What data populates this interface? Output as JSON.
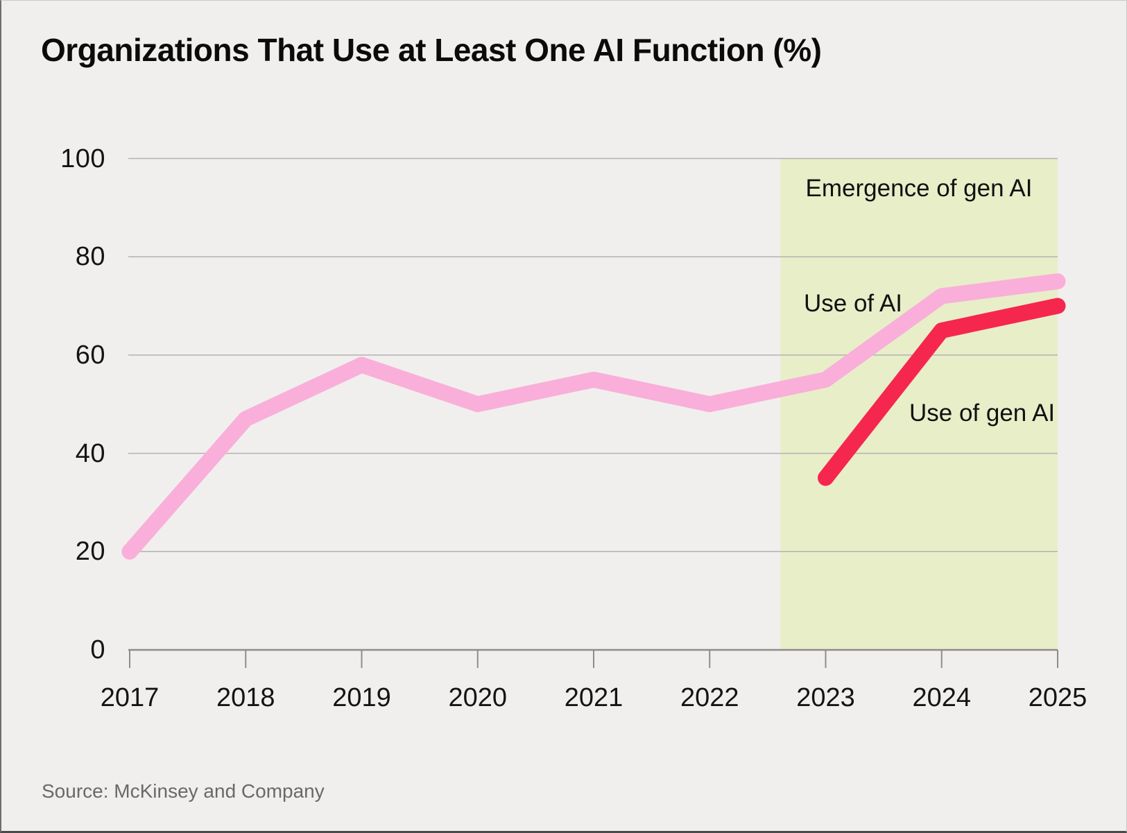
{
  "title": "Organizations That Use at Least One AI Function (%)",
  "source_note": "Source: McKinsey and Company",
  "annotations": {
    "emergence_label": "Emergence of gen AI",
    "use_ai_label": "Use of AI",
    "use_gen_ai_label": "Use of gen AI"
  },
  "colors": {
    "background": "#f0efed",
    "use_ai_line": "#f9afd9",
    "use_gen_ai_line": "#f5274e",
    "shaded_band": "#e8eec8",
    "gridline": "#b3b2b0",
    "axis": "#8d8c8a",
    "title_text": "#0b0b0b",
    "source_text": "#696969"
  },
  "chart_data": {
    "type": "line",
    "title": "Organizations That Use at Least One AI Function (%)",
    "xlabel": "",
    "ylabel": "",
    "x_tick_labels": [
      "2017",
      "2018",
      "2019",
      "2020",
      "2021",
      "2022",
      "2023",
      "2024",
      "2025"
    ],
    "xlim": [
      2017,
      2025
    ],
    "ylim": [
      0,
      100
    ],
    "yticks": [
      0,
      20,
      40,
      60,
      80,
      100
    ],
    "grid": true,
    "legend_position": "inline-annotations",
    "series": [
      {
        "name": "Use of AI",
        "color": "#f9afd9",
        "x": [
          2017,
          2018,
          2019,
          2020,
          2021,
          2022,
          2023,
          2024,
          2025
        ],
        "values": [
          20,
          47,
          58,
          50,
          55,
          50,
          55,
          72,
          75
        ]
      },
      {
        "name": "Use of gen AI",
        "color": "#f5274e",
        "x": [
          2023,
          2024,
          2025
        ],
        "values": [
          35,
          65,
          70
        ]
      }
    ],
    "shaded_region": {
      "label": "Emergence of gen AI",
      "x_start": 2022.61,
      "x_end": 2025,
      "color": "#e8eec8"
    }
  }
}
